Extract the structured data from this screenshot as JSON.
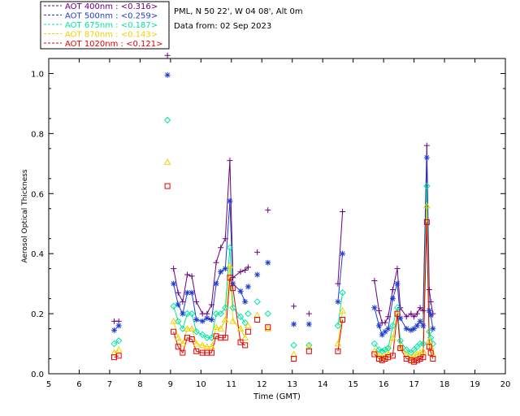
{
  "chart_data": {
    "type": "scatter",
    "title": "",
    "xlabel": "Time (GMT)",
    "ylabel": "Aerosol Optical Thickness",
    "xlim": [
      5,
      20
    ],
    "ylim": [
      0,
      1.05
    ],
    "xticks": [
      5,
      6,
      7,
      8,
      9,
      10,
      11,
      12,
      13,
      14,
      15,
      16,
      17,
      18,
      19,
      20
    ],
    "yticks": [
      0.0,
      0.2,
      0.4,
      0.6,
      0.8,
      1.0
    ],
    "info": {
      "location": "PML, N 50 22', W 04 08', Alt 0m",
      "date": "Data from: 02 Sep 2023"
    },
    "legend_position": "top-left, outside plot",
    "series": [
      {
        "name": "AOT  400nm : <0.316>",
        "color": "#6a0080",
        "marker": "plus",
        "x": [
          7.15,
          7.3,
          8.9,
          9.1,
          9.25,
          9.4,
          9.55,
          9.7,
          9.85,
          10.05,
          10.2,
          10.35,
          10.5,
          10.65,
          10.8,
          10.95,
          11.05,
          11.3,
          11.45,
          11.55,
          11.85,
          12.2,
          13.05,
          13.55,
          14.5,
          14.65,
          15.7,
          15.85,
          15.95,
          16.05,
          16.15,
          16.3,
          16.45,
          16.55,
          16.75,
          16.9,
          17.0,
          17.1,
          17.2,
          17.3,
          17.42,
          17.5,
          17.55,
          17.62
        ],
        "values": [
          0.175,
          0.175,
          1.06,
          0.35,
          0.27,
          0.24,
          0.33,
          0.325,
          0.24,
          0.2,
          0.2,
          0.23,
          0.37,
          0.42,
          0.45,
          0.71,
          0.32,
          0.34,
          0.345,
          0.355,
          0.405,
          0.545,
          0.225,
          0.2,
          0.3,
          0.54,
          0.31,
          0.21,
          0.17,
          0.17,
          0.19,
          0.28,
          0.35,
          0.22,
          0.19,
          0.2,
          0.19,
          0.2,
          0.22,
          0.21,
          0.76,
          0.28,
          0.24,
          0.2
        ],
        "lines": [
          [
            0,
            1
          ],
          [
            3,
            19
          ],
          [
            24,
            25
          ],
          [
            26,
            43
          ]
        ]
      },
      {
        "name": "AOT  500nm : <0.259>",
        "color": "#1e3cd2",
        "marker": "asterisk",
        "x": [
          7.15,
          7.3,
          8.9,
          9.1,
          9.25,
          9.4,
          9.55,
          9.7,
          9.85,
          10.05,
          10.2,
          10.35,
          10.5,
          10.65,
          10.8,
          10.95,
          11.05,
          11.3,
          11.45,
          11.55,
          11.85,
          12.2,
          13.05,
          13.55,
          14.5,
          14.65,
          15.7,
          15.85,
          15.95,
          16.05,
          16.15,
          16.3,
          16.45,
          16.55,
          16.75,
          16.9,
          17.0,
          17.1,
          17.2,
          17.3,
          17.42,
          17.5,
          17.55,
          17.62
        ],
        "values": [
          0.145,
          0.16,
          0.995,
          0.3,
          0.23,
          0.2,
          0.27,
          0.27,
          0.18,
          0.175,
          0.185,
          0.18,
          0.3,
          0.34,
          0.35,
          0.575,
          0.3,
          0.275,
          0.24,
          0.29,
          0.33,
          0.37,
          0.165,
          0.165,
          0.24,
          0.4,
          0.22,
          0.16,
          0.13,
          0.14,
          0.15,
          0.25,
          0.3,
          0.185,
          0.15,
          0.145,
          0.15,
          0.16,
          0.175,
          0.16,
          0.72,
          0.21,
          0.195,
          0.15
        ],
        "lines": [
          [
            0,
            1
          ],
          [
            3,
            18
          ],
          [
            24,
            25
          ],
          [
            26,
            43
          ]
        ]
      },
      {
        "name": "AOT  675nm : <0.187>",
        "color": "#00e6a0",
        "marker": "diamond",
        "x": [
          7.15,
          7.3,
          8.9,
          9.1,
          9.25,
          9.4,
          9.55,
          9.7,
          9.85,
          10.05,
          10.2,
          10.35,
          10.5,
          10.65,
          10.8,
          10.95,
          11.05,
          11.3,
          11.45,
          11.55,
          11.85,
          12.2,
          13.05,
          13.55,
          14.5,
          14.65,
          15.7,
          15.85,
          15.95,
          16.05,
          16.15,
          16.3,
          16.45,
          16.55,
          16.75,
          16.9,
          17.0,
          17.1,
          17.2,
          17.3,
          17.42,
          17.5,
          17.55,
          17.62
        ],
        "values": [
          0.1,
          0.11,
          0.845,
          0.225,
          0.175,
          0.15,
          0.2,
          0.2,
          0.14,
          0.13,
          0.12,
          0.12,
          0.2,
          0.2,
          0.22,
          0.42,
          0.22,
          0.19,
          0.17,
          0.2,
          0.24,
          0.2,
          0.095,
          0.095,
          0.16,
          0.27,
          0.1,
          0.08,
          0.075,
          0.08,
          0.085,
          0.16,
          0.22,
          0.11,
          0.08,
          0.07,
          0.08,
          0.09,
          0.1,
          0.1,
          0.625,
          0.14,
          0.12,
          0.1
        ],
        "lines": [
          [
            0,
            1
          ],
          [
            3,
            18
          ],
          [
            24,
            25
          ],
          [
            26,
            43
          ]
        ]
      },
      {
        "name": "AOT  870nm : <0.143>",
        "color": "#f0d200",
        "marker": "triangle",
        "x": [
          7.15,
          7.3,
          8.9,
          9.1,
          9.25,
          9.4,
          9.55,
          9.7,
          9.85,
          10.05,
          10.2,
          10.35,
          10.5,
          10.65,
          10.8,
          10.95,
          11.05,
          11.3,
          11.45,
          11.55,
          11.85,
          12.2,
          13.05,
          13.55,
          14.5,
          14.65,
          15.7,
          15.85,
          15.95,
          16.05,
          16.15,
          16.3,
          16.45,
          16.55,
          16.75,
          16.9,
          17.0,
          17.1,
          17.2,
          17.3,
          17.42,
          17.5,
          17.55,
          17.62
        ],
        "values": [
          0.07,
          0.08,
          0.705,
          0.175,
          0.12,
          0.1,
          0.15,
          0.15,
          0.1,
          0.095,
          0.09,
          0.09,
          0.155,
          0.15,
          0.18,
          0.36,
          0.175,
          0.15,
          0.12,
          0.16,
          0.195,
          0.15,
          0.065,
          0.09,
          0.1,
          0.21,
          0.075,
          0.06,
          0.055,
          0.06,
          0.065,
          0.12,
          0.2,
          0.09,
          0.065,
          0.05,
          0.06,
          0.065,
          0.07,
          0.075,
          0.56,
          0.11,
          0.09,
          0.065
        ],
        "lines": [
          [
            0,
            1
          ],
          [
            3,
            18
          ],
          [
            24,
            25
          ],
          [
            26,
            43
          ]
        ]
      },
      {
        "name": "AOT 1020nm : <0.121>",
        "color": "#e60000",
        "marker": "square",
        "x": [
          7.15,
          7.3,
          8.9,
          9.1,
          9.25,
          9.4,
          9.55,
          9.7,
          9.85,
          10.05,
          10.2,
          10.35,
          10.5,
          10.65,
          10.8,
          10.95,
          11.05,
          11.3,
          11.45,
          11.55,
          11.85,
          12.2,
          13.05,
          13.55,
          14.5,
          14.65,
          15.7,
          15.85,
          15.95,
          16.05,
          16.15,
          16.3,
          16.45,
          16.55,
          16.75,
          16.9,
          17.0,
          17.1,
          17.2,
          17.3,
          17.42,
          17.5,
          17.55,
          17.62
        ],
        "values": [
          0.055,
          0.06,
          0.625,
          0.14,
          0.09,
          0.07,
          0.12,
          0.115,
          0.075,
          0.07,
          0.07,
          0.07,
          0.125,
          0.12,
          0.12,
          0.32,
          0.285,
          0.105,
          0.095,
          0.14,
          0.18,
          0.155,
          0.05,
          0.075,
          0.075,
          0.18,
          0.065,
          0.05,
          0.045,
          0.05,
          0.055,
          0.06,
          0.2,
          0.085,
          0.05,
          0.045,
          0.04,
          0.045,
          0.05,
          0.055,
          0.505,
          0.09,
          0.07,
          0.05
        ],
        "lines": [
          [
            0,
            1
          ],
          [
            3,
            18
          ],
          [
            24,
            25
          ],
          [
            26,
            43
          ]
        ]
      }
    ]
  }
}
